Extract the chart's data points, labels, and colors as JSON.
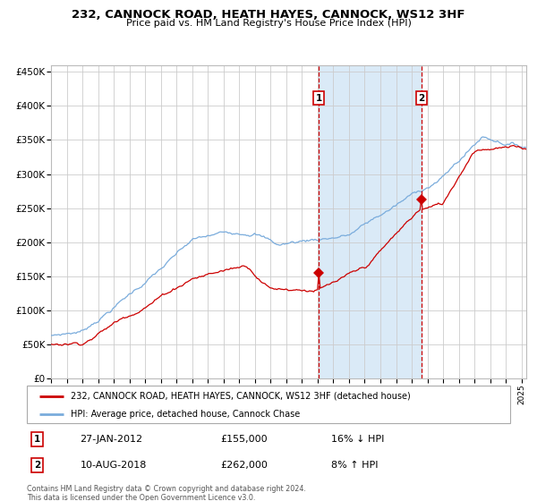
{
  "title": "232, CANNOCK ROAD, HEATH HAYES, CANNOCK, WS12 3HF",
  "subtitle": "Price paid vs. HM Land Registry's House Price Index (HPI)",
  "legend_line1": "232, CANNOCK ROAD, HEATH HAYES, CANNOCK, WS12 3HF (detached house)",
  "legend_line2": "HPI: Average price, detached house, Cannock Chase",
  "sale1_date": "27-JAN-2012",
  "sale1_price": "£155,000",
  "sale1_hpi": "16% ↓ HPI",
  "sale2_date": "10-AUG-2018",
  "sale2_price": "£262,000",
  "sale2_hpi": "8% ↑ HPI",
  "footnote": "Contains HM Land Registry data © Crown copyright and database right 2024.\nThis data is licensed under the Open Government Licence v3.0.",
  "red_color": "#cc0000",
  "blue_color": "#7aacdc",
  "bg_color": "#ffffff",
  "grid_color": "#cccccc",
  "highlight_color": "#daeaf7",
  "sale1_year": 2012.07,
  "sale2_year": 2018.62,
  "ylim_min": 0,
  "ylim_max": 460000,
  "xlim_start": 1995.0,
  "xlim_end": 2025.3
}
